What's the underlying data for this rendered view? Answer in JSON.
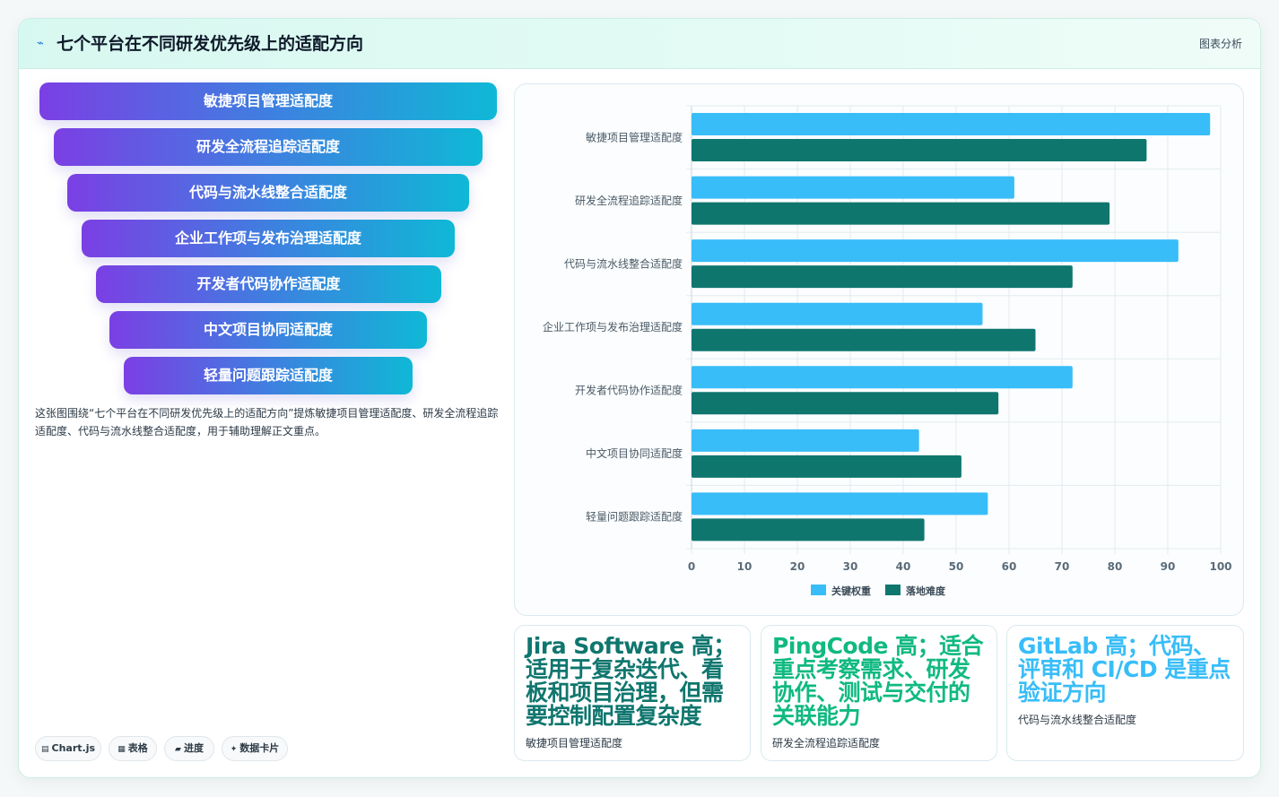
{
  "header": {
    "title": "七个平台在不同研发优先级上的适配方向",
    "tag": "图表分析"
  },
  "funnel": {
    "items": [
      "敏捷项目管理适配度",
      "研发全流程追踪适配度",
      "代码与流水线整合适配度",
      "企业工作项与发布治理适配度",
      "开发者代码协作适配度",
      "中文项目协同适配度",
      "轻量问题跟踪适配度"
    ]
  },
  "description": "这张图围绕“七个平台在不同研发优先级上的适配方向”提炼敏捷项目管理适配度、研发全流程追踪适配度、代码与流水线整合适配度，用于辅助理解正文重点。",
  "chips": [
    {
      "icon": "▤",
      "label": "Chart.js"
    },
    {
      "icon": "▦",
      "label": "表格"
    },
    {
      "icon": "▰",
      "label": "进度"
    },
    {
      "icon": "✦",
      "label": "数据卡片"
    }
  ],
  "chart_data": {
    "type": "bar",
    "orientation": "horizontal",
    "categories": [
      "敏捷项目管理适配度",
      "研发全流程追踪适配度",
      "代码与流水线整合适配度",
      "企业工作项与发布治理适配度",
      "开发者代码协作适配度",
      "中文项目协同适配度",
      "轻量问题跟踪适配度"
    ],
    "series": [
      {
        "name": "关键权重",
        "color": "#38bdf8",
        "values": [
          98,
          61,
          92,
          55,
          72,
          43,
          56
        ]
      },
      {
        "name": "落地难度",
        "color": "#0f766e",
        "values": [
          86,
          79,
          72,
          65,
          58,
          51,
          44
        ]
      }
    ],
    "xlim": [
      0,
      100
    ],
    "xticks": [
      0,
      10,
      20,
      30,
      40,
      50,
      60,
      70,
      80,
      90,
      100
    ],
    "grid": true,
    "legend": "bottom"
  },
  "cards": [
    {
      "headline": "Jira Software 高；适用于复杂迭代、看板和项目治理，但需要控制配置复杂度",
      "sub": "敏捷项目管理适配度",
      "color": "#0f766e"
    },
    {
      "headline": "PingCode 高；适合重点考察需求、研发协作、测试与交付的关联能力",
      "sub": "研发全流程追踪适配度",
      "color": "#10b981"
    },
    {
      "headline": "GitLab 高；代码、评审和 CI/CD 是重点验证方向",
      "sub": "代码与流水线整合适配度",
      "color": "#38bdf8"
    }
  ]
}
